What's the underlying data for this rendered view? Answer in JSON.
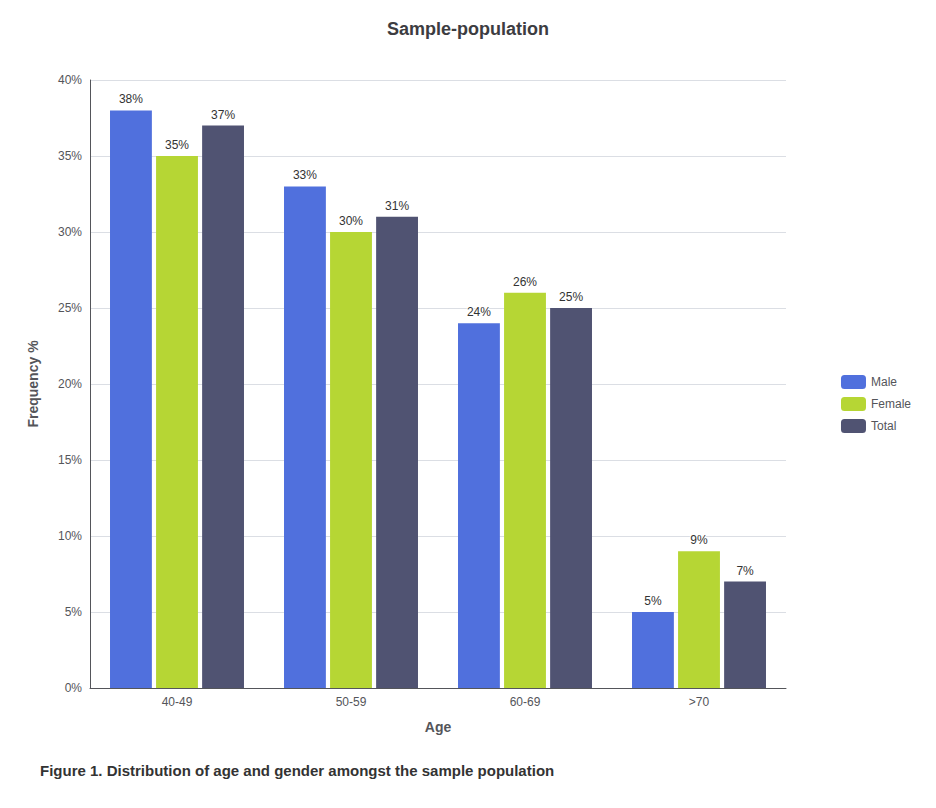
{
  "chart_data": {
    "type": "bar",
    "title": "Sample-population",
    "categories": [
      "40-49",
      "50-59",
      "60-69",
      ">70"
    ],
    "series": [
      {
        "name": "Male",
        "values": [
          38,
          33,
          24,
          5
        ],
        "value_labels": [
          "38%",
          "33%",
          "24%",
          "5%"
        ]
      },
      {
        "name": "Female",
        "values": [
          35,
          30,
          26,
          9
        ],
        "value_labels": [
          "35%",
          "30%",
          "26%",
          "9%"
        ]
      },
      {
        "name": "Total",
        "values": [
          37,
          31,
          25,
          7
        ],
        "value_labels": [
          "37%",
          "31%",
          "25%",
          "7%"
        ]
      }
    ],
    "xlabel": "Age",
    "ylabel": "Frequency %",
    "ylim": [
      0,
      40
    ],
    "yticks": [
      {
        "value": 0,
        "label": "0%"
      },
      {
        "value": 5,
        "label": "5%"
      },
      {
        "value": 10,
        "label": "10%"
      },
      {
        "value": 15,
        "label": "15%"
      },
      {
        "value": 20,
        "label": "20%"
      },
      {
        "value": 25,
        "label": "25%"
      },
      {
        "value": 30,
        "label": "30%"
      },
      {
        "value": 35,
        "label": "35%"
      },
      {
        "value": 40,
        "label": "40%"
      }
    ],
    "grid": true,
    "legend": "right",
    "data_labels": true,
    "caption": "Figure 1. Distribution of age and gender amongst the sample population"
  }
}
